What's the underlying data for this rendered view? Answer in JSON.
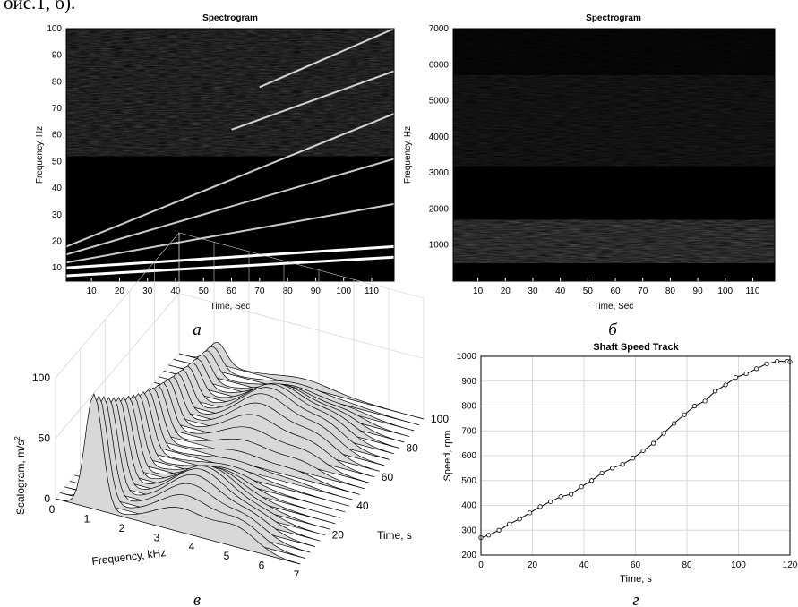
{
  "header_fragment": "оис.1, б).",
  "chart_data": [
    {
      "type": "heatmap",
      "title": "Spectrogram",
      "xlabel": "Time, Sec",
      "ylabel": "Frequency, Hz",
      "xlim": [
        1,
        118
      ],
      "ylim": [
        5,
        100
      ],
      "xticks": [
        10,
        20,
        30,
        40,
        50,
        60,
        70,
        80,
        90,
        100,
        110
      ],
      "yticks": [
        10,
        20,
        30,
        40,
        50,
        60,
        70,
        80,
        90,
        100
      ],
      "colormap": "gray",
      "caption": "а",
      "bright_bands": [
        {
          "name": "band1",
          "start": [
            1,
            7
          ],
          "end": [
            118,
            14
          ]
        },
        {
          "name": "band2",
          "start": [
            1,
            10
          ],
          "end": [
            118,
            18
          ]
        },
        {
          "name": "band3",
          "start": [
            1,
            12
          ],
          "end": [
            118,
            34
          ]
        },
        {
          "name": "band4",
          "start": [
            1,
            15
          ],
          "end": [
            118,
            51
          ]
        },
        {
          "name": "band5",
          "start": [
            1,
            18
          ],
          "end": [
            118,
            68
          ]
        },
        {
          "name": "band6",
          "start": [
            60,
            62
          ],
          "end": [
            118,
            84
          ]
        },
        {
          "name": "band7",
          "start": [
            70,
            78
          ],
          "end": [
            118,
            100
          ]
        }
      ],
      "noise_region": [
        52,
        100
      ]
    },
    {
      "type": "heatmap",
      "title": "Spectrogram",
      "xlabel": "Time, Sec",
      "ylabel": "Frequency, Hz",
      "xlim": [
        1,
        118
      ],
      "ylim": [
        0,
        7000
      ],
      "xticks": [
        10,
        20,
        30,
        40,
        50,
        60,
        70,
        80,
        90,
        100,
        110
      ],
      "yticks": [
        1000,
        2000,
        3000,
        4000,
        5000,
        6000,
        7000
      ],
      "colormap": "gray",
      "caption": "б",
      "energy_bands": [
        {
          "range": [
            500,
            1700
          ],
          "intensity": 0.85
        },
        {
          "range": [
            3200,
            5700
          ],
          "intensity": 0.35
        },
        {
          "range": [
            5700,
            7000
          ],
          "intensity": 0.12
        }
      ]
    },
    {
      "type": "surface",
      "zlabel": "Scalogram, m/s",
      "zlabel_sup": "2",
      "xlabel": "Frequency, kHz",
      "ylabel": "Time, s",
      "xticks": [
        0,
        1,
        2,
        3,
        4,
        5,
        6,
        7
      ],
      "yticks": [
        20,
        40,
        60,
        80,
        100
      ],
      "zticks": [
        0,
        50,
        100
      ],
      "caption": "в"
    },
    {
      "type": "line",
      "title": "Shaft Speed Track",
      "xlabel": "Time, s",
      "ylabel": "Speed, rpm",
      "xlim": [
        0,
        120
      ],
      "ylim": [
        200,
        1000
      ],
      "xticks": [
        0,
        20,
        40,
        60,
        80,
        100,
        120
      ],
      "yticks": [
        200,
        300,
        400,
        500,
        600,
        700,
        800,
        900,
        1000
      ],
      "grid": true,
      "caption": "г",
      "x": [
        0,
        3,
        7,
        11,
        15,
        19,
        23,
        27,
        31,
        35,
        39,
        43,
        47,
        51,
        55,
        59,
        63,
        67,
        71,
        75,
        79,
        83,
        87,
        91,
        95,
        99,
        103,
        107,
        111,
        115,
        119,
        120
      ],
      "y": [
        270,
        280,
        300,
        325,
        345,
        370,
        395,
        415,
        435,
        445,
        475,
        500,
        530,
        550,
        565,
        590,
        620,
        650,
        690,
        730,
        765,
        800,
        820,
        860,
        885,
        915,
        930,
        950,
        970,
        980,
        980,
        978
      ]
    }
  ]
}
